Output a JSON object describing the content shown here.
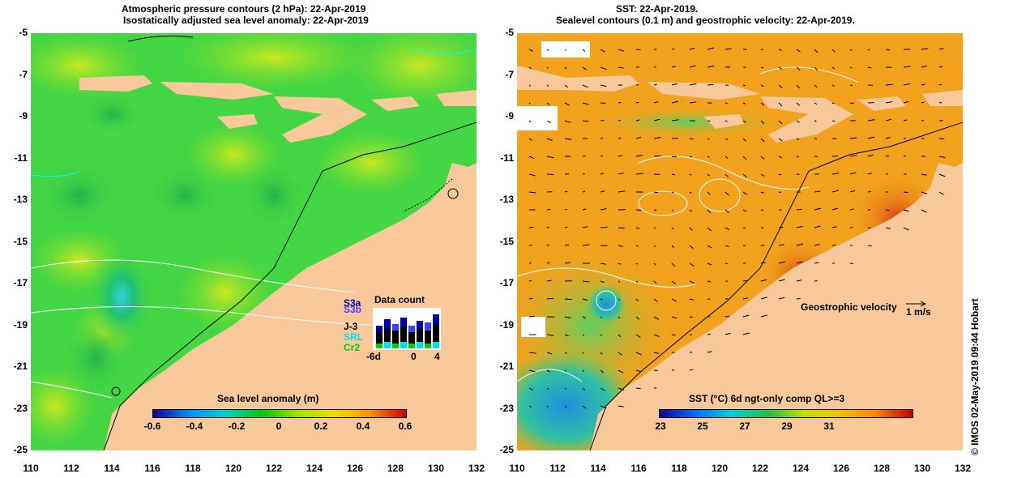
{
  "left_panel": {
    "title_line1": "Atmospheric pressure contours (2 hPa): 22-Apr-2019",
    "title_line2": "Isostatically adjusted sea level anomaly: 22-Apr-2019",
    "colorbar": {
      "label": "Sea level anomaly (m)",
      "ticks": [
        "-0.6",
        "-0.4",
        "-0.2",
        "0",
        "0.2",
        "0.4",
        "0.6"
      ],
      "colors": [
        "#10009a",
        "#0090ff",
        "#00d0d0",
        "#00c800",
        "#a0e000",
        "#e8e000",
        "#ff9000",
        "#d00000"
      ]
    },
    "data_count": {
      "title": "Data count",
      "satellites": [
        {
          "name": "S3a",
          "color": "#0000aa"
        },
        {
          "name": "S3b",
          "color": "#4040ff"
        },
        {
          "name": "J-3",
          "color": "#000000"
        },
        {
          "name": "SRL",
          "color": "#00e0e0"
        },
        {
          "name": "Cr2",
          "color": "#00cc00"
        }
      ],
      "xticks": [
        "-6d",
        "0",
        "4"
      ]
    }
  },
  "right_panel": {
    "title_line1": "SST: 22-Apr-2019.",
    "title_line2": "Sealevel contours (0.1 m) and geostrophic velocity: 22-Apr-2019.",
    "velocity_legend": "Geostrophic velocity",
    "velocity_unit": "1 m/s",
    "colorbar": {
      "label": "SST (°C) 6d ngt-only comp QL>=3",
      "ticks": [
        "23",
        "25",
        "27",
        "29",
        "31"
      ],
      "colors": [
        "#10009a",
        "#0070ff",
        "#00d0e0",
        "#20c040",
        "#c0e000",
        "#f0c000",
        "#ff8000",
        "#c00000"
      ]
    }
  },
  "axes": {
    "yticks": [
      "-5",
      "-7",
      "-9",
      "-11",
      "-13",
      "-15",
      "-17",
      "-19",
      "-21",
      "-23",
      "-25"
    ],
    "xticks": [
      "110",
      "112",
      "114",
      "116",
      "118",
      "120",
      "122",
      "124",
      "126",
      "128",
      "130",
      "132"
    ]
  },
  "credit": "© IMOS 02-May-2019 09:44 Hobart",
  "colors": {
    "land": "#f9c89b",
    "ocean_sla": "#44d644",
    "ocean_sst": "#f2a21c"
  }
}
